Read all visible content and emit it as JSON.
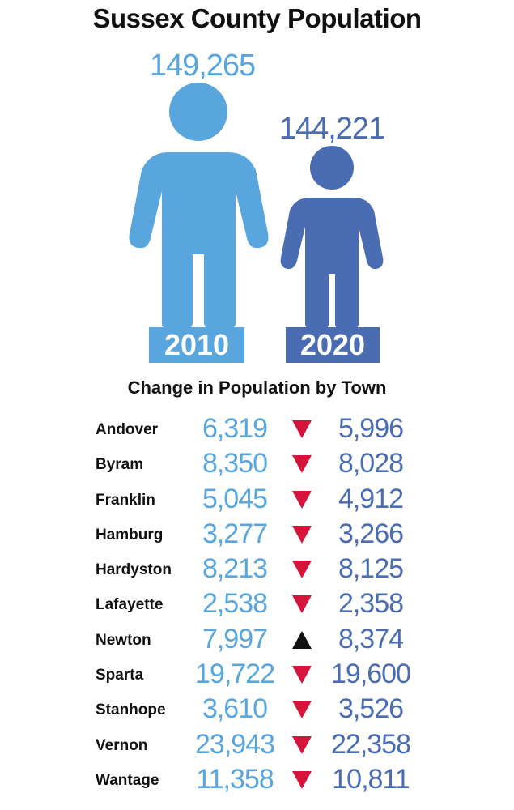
{
  "title": "Sussex County Population",
  "subtitle": "Change in Population by Town",
  "colors": {
    "pop2010": "#58a6dd",
    "pop2020": "#4a6cb2",
    "down": "#d4143a",
    "up": "#111111"
  },
  "chart_data": {
    "type": "table",
    "title": "Sussex County Population",
    "totals": [
      {
        "year": "2010",
        "value": 149265,
        "label": "149,265"
      },
      {
        "year": "2020",
        "value": 144221,
        "label": "144,221"
      }
    ],
    "table_title": "Change in Population by Town",
    "towns": [
      {
        "name": "Andover",
        "pop2010": "6,319",
        "pop2020": "5,996",
        "direction": "down"
      },
      {
        "name": "Byram",
        "pop2010": "8,350",
        "pop2020": "8,028",
        "direction": "down"
      },
      {
        "name": "Franklin",
        "pop2010": "5,045",
        "pop2020": "4,912",
        "direction": "down"
      },
      {
        "name": "Hamburg",
        "pop2010": "3,277",
        "pop2020": "3,266",
        "direction": "down"
      },
      {
        "name": "Hardyston",
        "pop2010": "8,213",
        "pop2020": "8,125",
        "direction": "down"
      },
      {
        "name": "Lafayette",
        "pop2010": "2,538",
        "pop2020": "2,358",
        "direction": "down"
      },
      {
        "name": "Newton",
        "pop2010": "7,997",
        "pop2020": "8,374",
        "direction": "up"
      },
      {
        "name": "Sparta",
        "pop2010": "19,722",
        "pop2020": "19,600",
        "direction": "down"
      },
      {
        "name": "Stanhope",
        "pop2010": "3,610",
        "pop2020": "3,526",
        "direction": "down"
      },
      {
        "name": "Vernon",
        "pop2010": "23,943",
        "pop2020": "22,358",
        "direction": "down"
      },
      {
        "name": "Wantage",
        "pop2010": "11,358",
        "pop2020": "10,811",
        "direction": "down"
      }
    ]
  }
}
